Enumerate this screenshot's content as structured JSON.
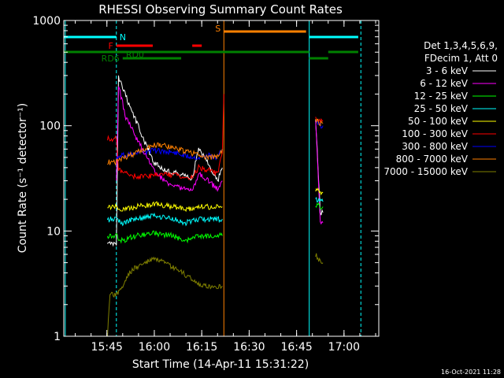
{
  "chart_data": {
    "type": "line",
    "title": "RHESSI Observing Summary Count Rates",
    "xlabel": "Start Time (14-Apr-11 15:31:22)",
    "ylabel": "Count Rate (s⁻¹ detector⁻¹)",
    "y_scale": "log",
    "ylim": [
      1,
      1000
    ],
    "xlim": [
      "15:31:22",
      "17:11:00"
    ],
    "x_ticks": [
      "15:45",
      "16:00",
      "16:15",
      "16:30",
      "16:45",
      "17:00"
    ],
    "y_ticks": [
      "1",
      "10",
      "100",
      "1000"
    ],
    "grid": false,
    "legend_position": "right",
    "legend_header": [
      "Det 1,3,4,5,6,9,",
      "FDecim 1, Att 0"
    ],
    "timestamp": "16-Oct-2021 11:28",
    "series": [
      {
        "name": "3 - 6 keV",
        "color": "#ffffff",
        "segments": [
          {
            "x": [
              "15:45:10",
              "15:48:00",
              "15:48:40",
              "15:51:00",
              "15:54:00",
              "15:57:00",
              "16:00:00",
              "16:03:00",
              "16:06:00",
              "16:09:00",
              "16:12:00",
              "16:14:00",
              "16:17:00",
              "16:20:00",
              "16:21:30"
            ],
            "y": [
              7.5,
              7.5,
              290,
              190,
              115,
              70,
              45,
              38,
              36,
              34,
              32,
              60,
              45,
              30,
              40
            ]
          },
          {
            "x": [
              "16:51:00",
              "16:52:30",
              "16:53:20"
            ],
            "y": [
              120,
              15,
              15
            ]
          }
        ]
      },
      {
        "name": "6 - 12 keV",
        "color": "#ff00ff",
        "segments": [
          {
            "x": [
              "15:48:00",
              "15:48:40",
              "15:51:00",
              "15:54:00",
              "15:57:00",
              "16:00:00",
              "16:03:00",
              "16:06:00",
              "16:09:00",
              "16:12:00",
              "16:14:00",
              "16:17:00",
              "16:20:00",
              "16:21:30"
            ],
            "y": [
              30,
              240,
              120,
              80,
              55,
              38,
              30,
              27,
              25,
              24,
              35,
              30,
              25,
              30
            ]
          },
          {
            "x": [
              "16:51:00",
              "16:52:30",
              "16:53:20"
            ],
            "y": [
              115,
              12,
              12
            ]
          }
        ]
      },
      {
        "name": "12 - 25 keV",
        "color": "#00ff00",
        "segments": [
          {
            "x": [
              "15:45:10",
              "15:48:00",
              "15:50:00",
              "15:54:00",
              "16:00:00",
              "16:06:00",
              "16:10:00",
              "16:14:00",
              "16:17:00",
              "16:20:00",
              "16:21:30"
            ],
            "y": [
              9,
              9,
              8,
              9,
              9.5,
              9,
              8,
              9,
              9,
              9,
              9
            ]
          },
          {
            "x": [
              "16:51:00",
              "16:52:30",
              "16:53:20"
            ],
            "y": [
              18,
              17,
              17
            ]
          }
        ]
      },
      {
        "name": "25 - 50 keV",
        "color": "#00ffff",
        "segments": [
          {
            "x": [
              "15:45:10",
              "15:48:00",
              "15:50:00",
              "15:54:00",
              "16:00:00",
              "16:06:00",
              "16:10:00",
              "16:14:00",
              "16:17:00",
              "16:20:00",
              "16:21:30"
            ],
            "y": [
              13,
              13,
              12,
              13,
              14,
              13,
              12,
              13,
              13,
              13,
              13
            ]
          },
          {
            "x": [
              "16:51:00",
              "16:52:30",
              "16:53:20"
            ],
            "y": [
              20,
              19,
              19
            ]
          }
        ]
      },
      {
        "name": "50 - 100 keV",
        "color": "#ffff00",
        "segments": [
          {
            "x": [
              "15:45:10",
              "15:48:00",
              "15:50:00",
              "15:54:00",
              "16:00:00",
              "16:06:00",
              "16:10:00",
              "16:14:00",
              "16:17:00",
              "16:20:00",
              "16:21:30"
            ],
            "y": [
              17,
              17,
              16,
              17,
              18,
              17,
              16,
              17,
              17,
              17,
              17
            ]
          },
          {
            "x": [
              "16:51:00",
              "16:52:30",
              "16:53:20"
            ],
            "y": [
              25,
              23,
              23
            ]
          }
        ]
      },
      {
        "name": "100 - 300 keV",
        "color": "#ff0000",
        "segments": [
          {
            "x": [
              "15:45:10",
              "15:48:00",
              "15:48:40",
              "15:51:00",
              "15:54:00",
              "15:57:00",
              "16:00:00",
              "16:03:00",
              "16:06:00",
              "16:09:00",
              "16:12:00",
              "16:14:00",
              "16:17:00",
              "16:20:00",
              "16:21:30",
              "16:22:00"
            ],
            "y": [
              75,
              75,
              38,
              35,
              33,
              33,
              34,
              35,
              34,
              33,
              32,
              40,
              38,
              35,
              55,
              200
            ]
          },
          {
            "x": [
              "16:51:00",
              "16:52:30",
              "16:53:20"
            ],
            "y": [
              115,
              110,
              110
            ]
          }
        ]
      },
      {
        "name": "300 - 800 keV",
        "color": "#0000ff",
        "segments": [
          {
            "x": [
              "15:48:00",
              "15:50:00",
              "15:54:00",
              "16:00:00",
              "16:06:00",
              "16:10:00",
              "16:14:00",
              "16:17:00",
              "16:20:00",
              "16:21:30"
            ],
            "y": [
              50,
              52,
              55,
              58,
              56,
              52,
              50,
              52,
              50,
              60
            ]
          },
          {
            "x": [
              "16:51:00",
              "16:52:30",
              "16:53:20"
            ],
            "y": [
              110,
              100,
              100
            ]
          }
        ]
      },
      {
        "name": "800 - 7000 keV",
        "color": "#ff8000",
        "segments": [
          {
            "x": [
              "15:45:10",
              "15:48:00",
              "15:51:00",
              "15:54:00",
              "15:57:00",
              "16:00:00",
              "16:03:00",
              "16:06:00",
              "16:09:00",
              "16:12:00",
              "16:14:00",
              "16:17:00",
              "16:20:00",
              "16:21:30"
            ],
            "y": [
              45,
              45,
              50,
              55,
              60,
              65,
              65,
              62,
              58,
              55,
              52,
              50,
              50,
              60
            ]
          },
          {
            "x": [
              "16:51:00",
              "16:52:30",
              "16:53:20"
            ],
            "y": [
              115,
              105,
              105
            ]
          }
        ]
      },
      {
        "name": "7000 - 15000 keV",
        "color": "#808000",
        "segments": [
          {
            "x": [
              "15:45:10",
              "15:46:00",
              "15:48:00",
              "15:50:00",
              "15:52:00",
              "15:54:00",
              "15:57:00",
              "16:00:00",
              "16:03:00",
              "16:06:00",
              "16:09:00",
              "16:12:00",
              "16:15:00",
              "16:18:00",
              "16:20:00",
              "16:21:30"
            ],
            "y": [
              1,
              2.5,
              2.5,
              3,
              4,
              4.5,
              5,
              5.5,
              5,
              4.5,
              4,
              3.5,
              3,
              3,
              3,
              3
            ]
          },
          {
            "x": [
              "16:51:00",
              "16:52:30",
              "16:53:20"
            ],
            "y": [
              6,
              5,
              5
            ]
          }
        ]
      }
    ],
    "vertical_markers": [
      {
        "x": "15:31:50",
        "color": "#00ffff",
        "style": "solid"
      },
      {
        "x": "15:48:00",
        "color": "#00ffff",
        "style": "dashed"
      },
      {
        "x": "16:22:00",
        "color": "#ff8000",
        "style": "solid"
      },
      {
        "x": "16:49:00",
        "color": "#00ffff",
        "style": "solid"
      },
      {
        "x": "17:05:20",
        "color": "#00ffff",
        "style": "dashed"
      }
    ],
    "flag_bars": [
      {
        "label": "N",
        "color": "#00ffff",
        "level": 1,
        "ranges": [
          [
            "15:31:22",
            "15:48:00"
          ],
          [
            "16:49:00",
            "17:04:30"
          ]
        ]
      },
      {
        "label": "S",
        "color": "#ff8000",
        "level": 2,
        "ranges": [
          [
            "16:22:00",
            "16:48:00"
          ]
        ]
      },
      {
        "label": "F",
        "color": "#ff0000",
        "level": 3,
        "ranges": [
          [
            "15:48:00",
            "15:59:30"
          ],
          [
            "16:12:00",
            "16:15:00"
          ]
        ]
      },
      {
        "label": "RD0",
        "color": "#008000",
        "level": 4,
        "ranges": [
          [
            "15:31:22",
            "16:49:00"
          ],
          [
            "16:55:00",
            "17:04:30"
          ]
        ]
      },
      {
        "label": "RD6",
        "color": "#008000",
        "level": 5,
        "ranges": [
          [
            "15:50:00",
            "16:08:30"
          ],
          [
            "16:49:00",
            "16:55:00"
          ]
        ]
      }
    ]
  }
}
